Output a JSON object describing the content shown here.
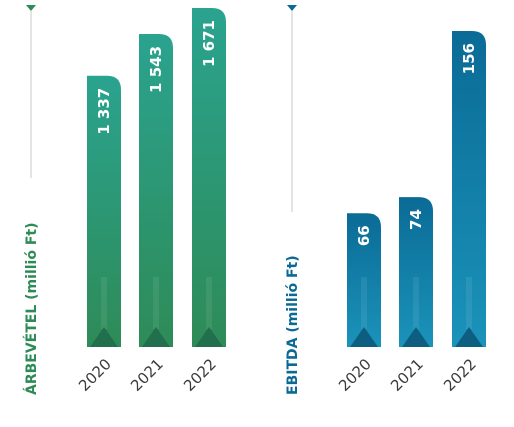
{
  "chart_data": [
    {
      "type": "bar",
      "ylabel": "ÁRBEVÉTEL (millió Ft)",
      "categories": [
        "2020",
        "2021",
        "2022"
      ],
      "values": [
        1337,
        1543,
        1671
      ],
      "value_labels": [
        "1 337",
        "1 543",
        "1 671"
      ],
      "ylim": [
        0,
        1671
      ],
      "color_top": "#2a9d8a",
      "color_bottom": "#2e8b57",
      "axis_color": "#2e8b57"
    },
    {
      "type": "bar",
      "ylabel": "EBITDA (millió Ft)",
      "categories": [
        "2020",
        "2021",
        "2022"
      ],
      "values": [
        66,
        74,
        156
      ],
      "value_labels": [
        "66",
        "74",
        "156"
      ],
      "ylim": [
        0,
        156
      ],
      "color_top": "#0c6e99",
      "color_bottom": "#1e8fb5",
      "axis_color": "#0b6a93"
    }
  ]
}
